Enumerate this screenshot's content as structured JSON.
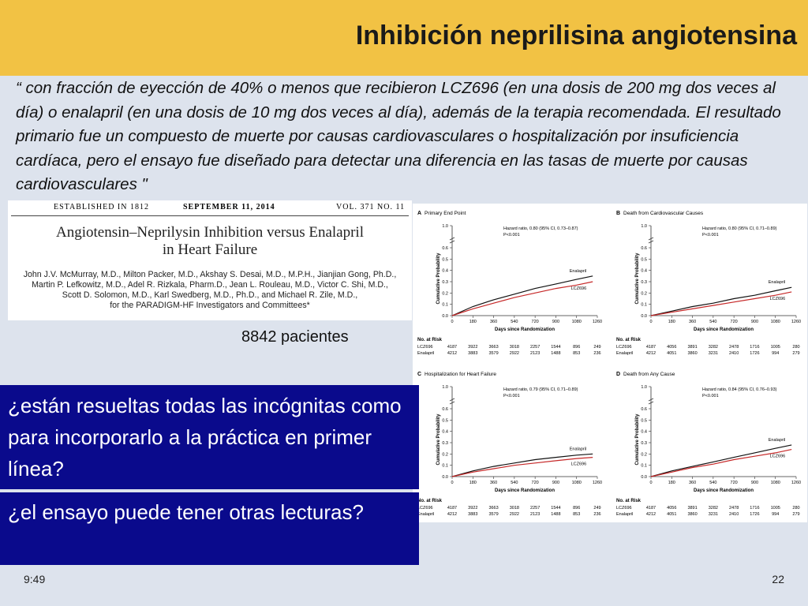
{
  "slide": {
    "title": "Inhibición neprilisina angiotensina",
    "quote": "“ con fracción de eyección de 40% o menos que recibieron LCZ696 (en una dosis de 200 mg dos veces al día) o enalapril (en una dosis de 10 mg dos veces al día), además de la terapia recomendada. El resultado primario fue un compuesto de muerte por causas cardiovasculares o hospitalización por insuficiencia cardíaca, pero el ensayo fue diseñado para detectar una diferencia en las tasas de muerte por causas cardiovasculares \"",
    "patients": "8842 pacientes",
    "question1": "¿están resueltas todas las incógnitas como para incorporarlo a la práctica en primer línea?",
    "question2": "¿el ensayo  puede tener otras lecturas?",
    "time": "9:49",
    "page": "22"
  },
  "article": {
    "established": "ESTABLISHED IN 1812",
    "date": "SEPTEMBER 11, 2014",
    "volume": "VOL. 371   NO. 11",
    "title_line1": "Angiotensin–Neprilysin Inhibition versus Enalapril",
    "title_line2": "in Heart Failure",
    "authors_line1": "John J.V. McMurray, M.D., Milton Packer, M.D., Akshay S. Desai, M.D., M.P.H., Jianjian Gong, Ph.D.,",
    "authors_line2": "Martin P. Lefkowitz, M.D., Adel R. Rizkala, Pharm.D., Jean L. Rouleau, M.D., Victor C. Shi, M.D.,",
    "authors_line3": "Scott D. Solomon, M.D., Karl Swedberg, M.D., Ph.D., and Michael R. Zile, M.D.,",
    "authors_line4": "for the PARADIGM-HF Investigators and Committees*"
  },
  "chart_data": [
    {
      "type": "line",
      "panel": "A",
      "title": "Primary End Point",
      "hazard": "Hazard ratio, 0.80 (95% CI, 0.73–0.87)",
      "p": "P<0.001",
      "xlabel": "Days since Randomization",
      "ylabel": "Cumulative Probability",
      "x_ticks": [
        0,
        180,
        360,
        540,
        720,
        900,
        1080,
        1260
      ],
      "y_ticks": [
        0,
        0.1,
        0.2,
        0.3,
        0.4,
        0.5,
        0.6,
        1.0
      ],
      "y_tick_labels": [
        "0.0",
        "0.1",
        "0.2",
        "0.3",
        "0.4",
        "0.5",
        "0.6",
        "1.0"
      ],
      "xlim": [
        0,
        1260
      ],
      "series": [
        {
          "name": "Enalapril",
          "color": "#111111",
          "x": [
            0,
            180,
            360,
            540,
            720,
            900,
            1080,
            1220
          ],
          "y": [
            0,
            0.08,
            0.14,
            0.19,
            0.24,
            0.28,
            0.32,
            0.35
          ]
        },
        {
          "name": "LCZ696",
          "color": "#c62828",
          "x": [
            0,
            180,
            360,
            540,
            720,
            900,
            1080,
            1220
          ],
          "y": [
            0,
            0.06,
            0.11,
            0.16,
            0.2,
            0.24,
            0.27,
            0.3
          ]
        }
      ],
      "risk_header": "No. at Risk",
      "risk": [
        {
          "label": "LCZ696",
          "values": [
            "4187",
            "3922",
            "3663",
            "3018",
            "2257",
            "1544",
            "896",
            "249"
          ]
        },
        {
          "label": "Enalapril",
          "values": [
            "4212",
            "3883",
            "3579",
            "2922",
            "2123",
            "1488",
            "853",
            "236"
          ]
        }
      ]
    },
    {
      "type": "line",
      "panel": "B",
      "title": "Death from Cardiovascular Causes",
      "hazard": "Hazard ratio, 0.80 (95% CI, 0.71–0.89)",
      "p": "P<0.001",
      "xlabel": "Days since Randomization",
      "ylabel": "Cumulative Probability",
      "x_ticks": [
        0,
        180,
        360,
        540,
        720,
        900,
        1080,
        1260
      ],
      "y_ticks": [
        0,
        0.1,
        0.2,
        0.3,
        0.4,
        0.5,
        0.6,
        1.0
      ],
      "y_tick_labels": [
        "0.0",
        "0.1",
        "0.2",
        "0.3",
        "0.4",
        "0.5",
        "0.6",
        "1.0"
      ],
      "xlim": [
        0,
        1260
      ],
      "series": [
        {
          "name": "Enalapril",
          "color": "#111111",
          "x": [
            0,
            180,
            360,
            540,
            720,
            900,
            1080,
            1220
          ],
          "y": [
            0,
            0.04,
            0.08,
            0.11,
            0.15,
            0.18,
            0.22,
            0.25
          ]
        },
        {
          "name": "LCZ696",
          "color": "#c62828",
          "x": [
            0,
            180,
            360,
            540,
            720,
            900,
            1080,
            1220
          ],
          "y": [
            0,
            0.03,
            0.06,
            0.09,
            0.12,
            0.15,
            0.18,
            0.21
          ]
        }
      ],
      "risk_header": "No. at Risk",
      "risk": [
        {
          "label": "LCZ696",
          "values": [
            "4187",
            "4056",
            "3891",
            "3282",
            "2478",
            "1716",
            "1005",
            "280"
          ]
        },
        {
          "label": "Enalapril",
          "values": [
            "4212",
            "4051",
            "3860",
            "3231",
            "2410",
            "1726",
            "994",
            "279"
          ]
        }
      ]
    },
    {
      "type": "line",
      "panel": "C",
      "title": "Hospitalization for Heart Failure",
      "hazard": "Hazard ratio, 0.79 (95% CI, 0.71–0.89)",
      "p": "P<0.001",
      "xlabel": "Days since Randomization",
      "ylabel": "Cumulative Probability",
      "x_ticks": [
        0,
        180,
        360,
        540,
        720,
        900,
        1080,
        1260
      ],
      "y_ticks": [
        0,
        0.1,
        0.2,
        0.3,
        0.4,
        0.5,
        0.6,
        1.0
      ],
      "y_tick_labels": [
        "0.0",
        "0.1",
        "0.2",
        "0.3",
        "0.4",
        "0.5",
        "0.6",
        "1.0"
      ],
      "xlim": [
        0,
        1260
      ],
      "series": [
        {
          "name": "Enalapril",
          "color": "#111111",
          "x": [
            0,
            180,
            360,
            540,
            720,
            900,
            1080,
            1220
          ],
          "y": [
            0,
            0.05,
            0.09,
            0.12,
            0.15,
            0.17,
            0.19,
            0.2
          ]
        },
        {
          "name": "LCZ696",
          "color": "#c62828",
          "x": [
            0,
            180,
            360,
            540,
            720,
            900,
            1080,
            1220
          ],
          "y": [
            0,
            0.04,
            0.07,
            0.1,
            0.12,
            0.14,
            0.16,
            0.17
          ]
        }
      ],
      "risk_header": "No. at Risk",
      "risk": [
        {
          "label": "LCZ696",
          "values": [
            "4187",
            "3922",
            "3663",
            "3018",
            "2257",
            "1544",
            "896",
            "249"
          ]
        },
        {
          "label": "Enalapril",
          "values": [
            "4212",
            "3883",
            "3579",
            "2922",
            "2123",
            "1488",
            "853",
            "236"
          ]
        }
      ]
    },
    {
      "type": "line",
      "panel": "D",
      "title": "Death from Any Cause",
      "hazard": "Hazard ratio, 0.84 (95% CI, 0.76–0.93)",
      "p": "P<0.001",
      "xlabel": "Days since Randomization",
      "ylabel": "Cumulative Probability",
      "x_ticks": [
        0,
        180,
        360,
        540,
        720,
        900,
        1080,
        1260
      ],
      "y_ticks": [
        0,
        0.1,
        0.2,
        0.3,
        0.4,
        0.5,
        0.6,
        1.0
      ],
      "y_tick_labels": [
        "0.0",
        "0.1",
        "0.2",
        "0.3",
        "0.4",
        "0.5",
        "0.6",
        "1.0"
      ],
      "xlim": [
        0,
        1260
      ],
      "series": [
        {
          "name": "Enalapril",
          "color": "#111111",
          "x": [
            0,
            180,
            360,
            540,
            720,
            900,
            1080,
            1220
          ],
          "y": [
            0,
            0.05,
            0.09,
            0.13,
            0.17,
            0.21,
            0.25,
            0.28
          ]
        },
        {
          "name": "LCZ696",
          "color": "#c62828",
          "x": [
            0,
            180,
            360,
            540,
            720,
            900,
            1080,
            1220
          ],
          "y": [
            0,
            0.04,
            0.08,
            0.11,
            0.15,
            0.18,
            0.21,
            0.24
          ]
        }
      ],
      "risk_header": "No. at Risk",
      "risk": [
        {
          "label": "LCZ696",
          "values": [
            "4187",
            "4056",
            "3891",
            "3282",
            "2478",
            "1716",
            "1005",
            "280"
          ]
        },
        {
          "label": "Enalapril",
          "values": [
            "4212",
            "4051",
            "3860",
            "3231",
            "2410",
            "1726",
            "994",
            "279"
          ]
        }
      ]
    }
  ]
}
